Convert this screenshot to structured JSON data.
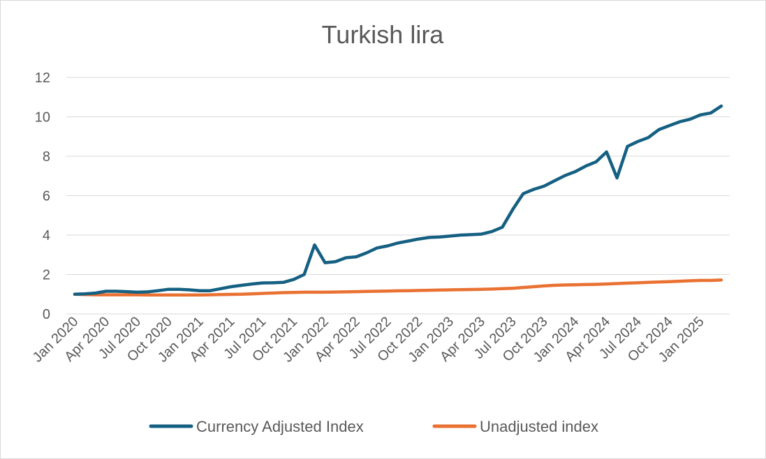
{
  "chart_data": {
    "type": "line",
    "title": "Turkish lira",
    "xlabel": "",
    "ylabel": "",
    "ylim": [
      0,
      12
    ],
    "yticks": [
      0,
      2,
      4,
      6,
      8,
      10,
      12
    ],
    "grid": true,
    "legend": "bottom",
    "x_tick_labels": [
      "Jan 2020",
      "Apr 2020",
      "Jul 2020",
      "Oct 2020",
      "Jan 2021",
      "Apr 2021",
      "Jul 2021",
      "Oct 2021",
      "Jan 2022",
      "Apr 2022",
      "Jul 2022",
      "Oct 2022",
      "Jan 2023",
      "Apr 2023",
      "Jul 2023",
      "Oct 2023",
      "Jan 2024",
      "Apr 2024",
      "Jul 2024",
      "Oct 2024",
      "Jan 2025"
    ],
    "x": [
      "Jan 2020",
      "Feb 2020",
      "Mar 2020",
      "Apr 2020",
      "May 2020",
      "Jun 2020",
      "Jul 2020",
      "Aug 2020",
      "Sep 2020",
      "Oct 2020",
      "Nov 2020",
      "Dec 2020",
      "Jan 2021",
      "Feb 2021",
      "Mar 2021",
      "Apr 2021",
      "May 2021",
      "Jun 2021",
      "Jul 2021",
      "Aug 2021",
      "Sep 2021",
      "Oct 2021",
      "Nov 2021",
      "Dec 2021",
      "Jan 2022",
      "Feb 2022",
      "Mar 2022",
      "Apr 2022",
      "May 2022",
      "Jun 2022",
      "Jul 2022",
      "Aug 2022",
      "Sep 2022",
      "Oct 2022",
      "Nov 2022",
      "Dec 2022",
      "Jan 2023",
      "Feb 2023",
      "Mar 2023",
      "Apr 2023",
      "May 2023",
      "Jun 2023",
      "Jul 2023",
      "Aug 2023",
      "Sep 2023",
      "Oct 2023",
      "Nov 2023",
      "Dec 2023",
      "Jan 2024",
      "Feb 2024",
      "Mar 2024",
      "Apr 2024",
      "May 2024",
      "Jun 2024",
      "Jul 2024",
      "Aug 2024",
      "Sep 2024",
      "Oct 2024",
      "Nov 2024",
      "Dec 2024",
      "Jan 2025",
      "Feb 2025",
      "Mar 2025"
    ],
    "series": [
      {
        "name": "Currency Adjusted Index",
        "color": "#156082",
        "values": [
          1.0,
          1.02,
          1.06,
          1.15,
          1.15,
          1.13,
          1.1,
          1.12,
          1.18,
          1.25,
          1.25,
          1.22,
          1.18,
          1.18,
          1.28,
          1.38,
          1.45,
          1.52,
          1.57,
          1.58,
          1.6,
          1.75,
          2.0,
          3.5,
          2.6,
          2.65,
          2.85,
          2.9,
          3.1,
          3.35,
          3.45,
          3.6,
          3.7,
          3.8,
          3.88,
          3.9,
          3.95,
          4.0,
          4.02,
          4.05,
          4.18,
          4.4,
          5.3,
          6.1,
          6.32,
          6.48,
          6.75,
          7.02,
          7.22,
          7.5,
          7.72,
          8.22,
          6.9,
          8.5,
          8.75,
          8.95,
          9.35,
          9.55,
          9.75,
          9.88,
          10.1,
          10.2,
          10.55
        ]
      },
      {
        "name": "Unadjusted index",
        "color": "#E97132",
        "values": [
          1.0,
          0.98,
          0.97,
          0.97,
          0.97,
          0.97,
          0.97,
          0.96,
          0.96,
          0.96,
          0.96,
          0.96,
          0.96,
          0.97,
          0.98,
          0.99,
          1.0,
          1.02,
          1.04,
          1.06,
          1.08,
          1.09,
          1.1,
          1.1,
          1.1,
          1.11,
          1.12,
          1.13,
          1.14,
          1.15,
          1.16,
          1.17,
          1.18,
          1.19,
          1.2,
          1.21,
          1.22,
          1.23,
          1.24,
          1.25,
          1.26,
          1.28,
          1.3,
          1.34,
          1.38,
          1.42,
          1.45,
          1.47,
          1.48,
          1.49,
          1.5,
          1.52,
          1.54,
          1.56,
          1.58,
          1.6,
          1.62,
          1.64,
          1.66,
          1.68,
          1.7,
          1.7,
          1.72
        ]
      }
    ]
  }
}
